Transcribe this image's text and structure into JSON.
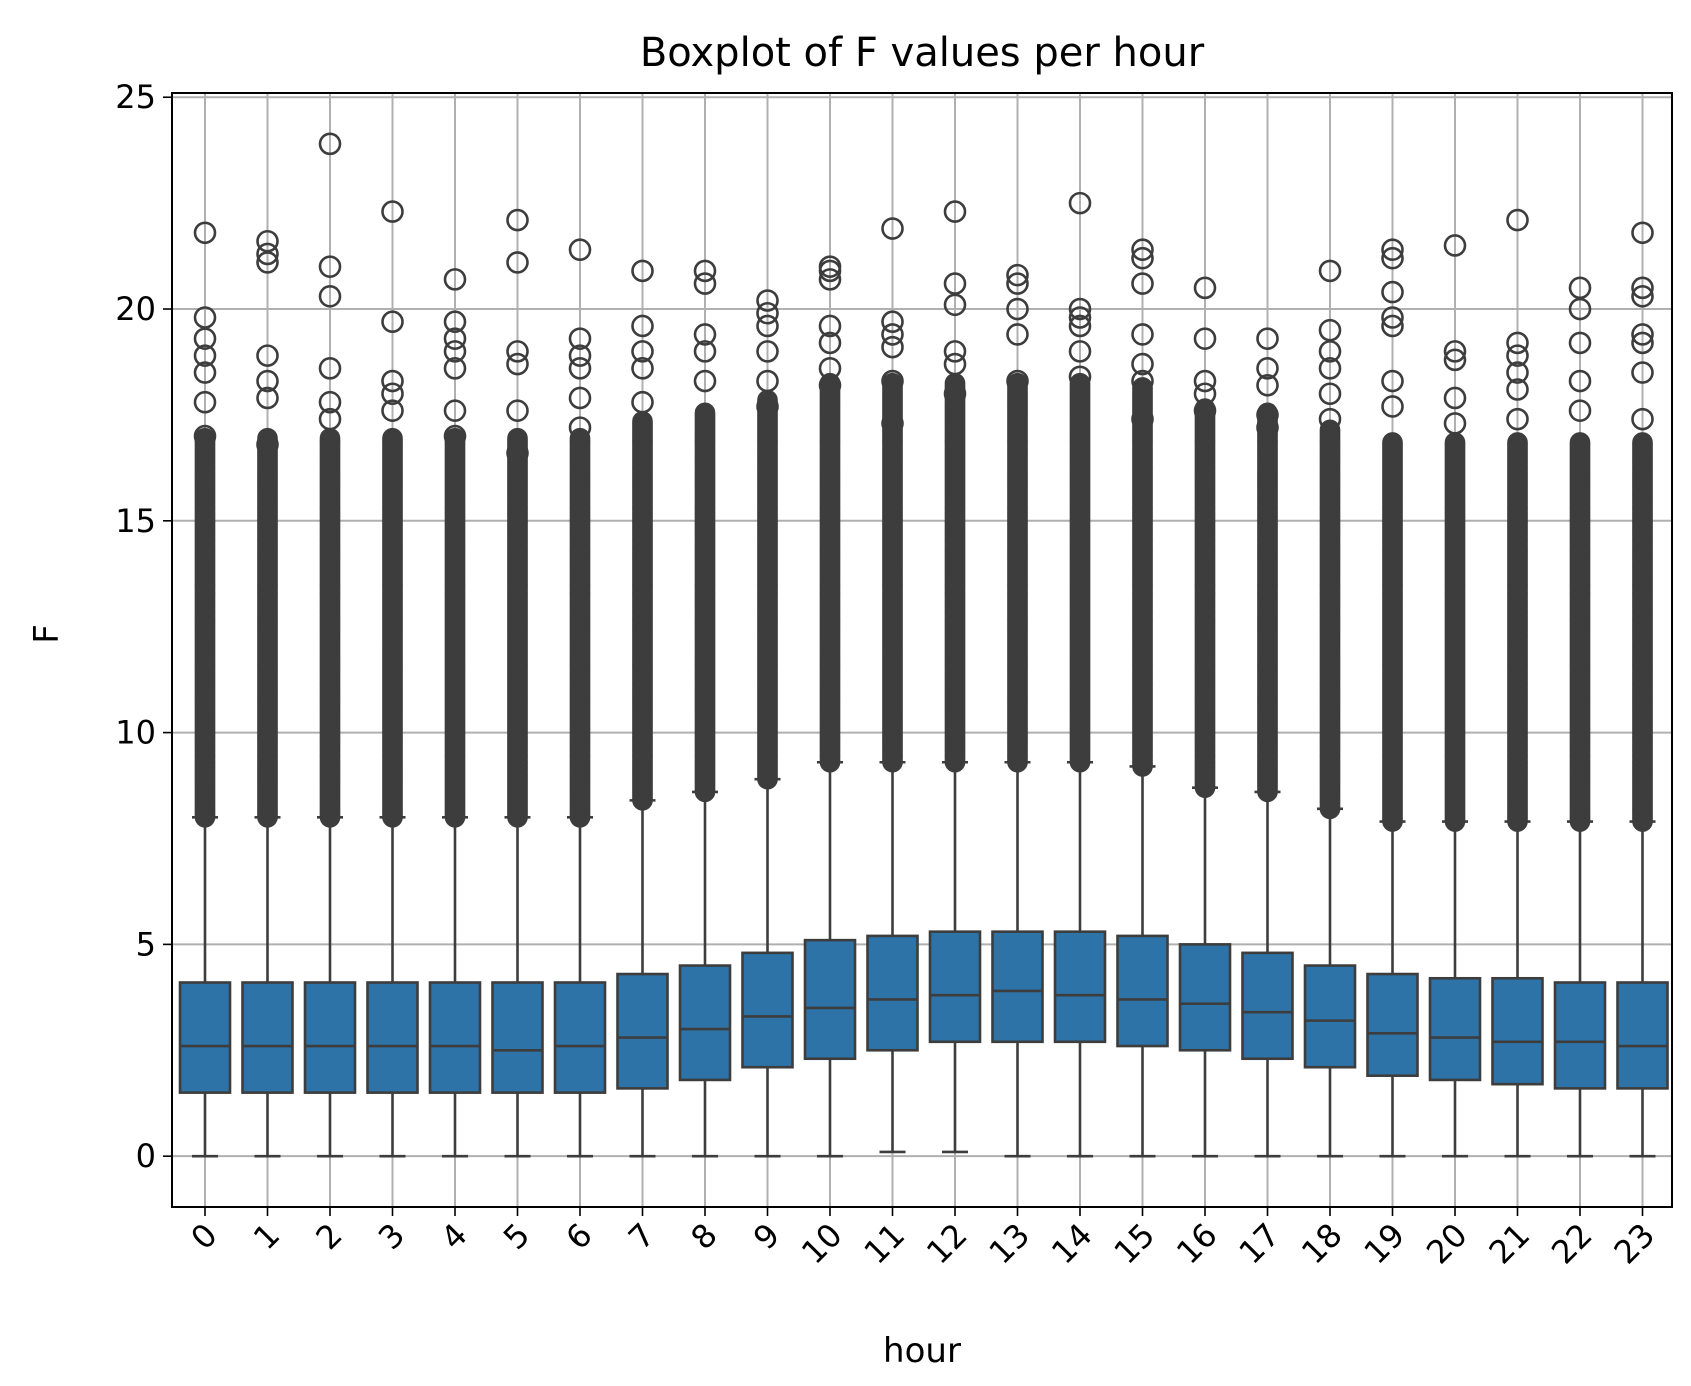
{
  "chart_data": {
    "type": "boxplot",
    "title": "Boxplot of F values per hour",
    "xlabel": "hour",
    "ylabel": "F",
    "ylim": [
      -1.2,
      25.1
    ],
    "yticks": [
      0,
      5,
      10,
      15,
      20,
      25
    ],
    "grid": true,
    "box_color": "#2e73a7",
    "line_color": "#3d3d3d",
    "categories": [
      "0",
      "1",
      "2",
      "3",
      "4",
      "5",
      "6",
      "7",
      "8",
      "9",
      "10",
      "11",
      "12",
      "13",
      "14",
      "15",
      "16",
      "17",
      "18",
      "19",
      "20",
      "21",
      "22",
      "23"
    ],
    "boxes": [
      {
        "whislo": 0.0,
        "q1": 1.5,
        "med": 2.6,
        "q3": 4.1,
        "whishi": 8.0,
        "fliers": [
          8.0,
          17.0,
          17.8,
          18.5,
          18.9,
          19.3,
          19.8,
          21.8
        ]
      },
      {
        "whislo": 0.0,
        "q1": 1.5,
        "med": 2.6,
        "q3": 4.1,
        "whishi": 8.0,
        "fliers": [
          8.0,
          16.8,
          17.9,
          18.3,
          18.9,
          21.1,
          21.3,
          21.6
        ]
      },
      {
        "whislo": 0.0,
        "q1": 1.5,
        "med": 2.6,
        "q3": 4.1,
        "whishi": 8.0,
        "fliers": [
          8.0,
          17.4,
          17.8,
          18.6,
          20.3,
          21.0,
          23.9
        ]
      },
      {
        "whislo": 0.0,
        "q1": 1.5,
        "med": 2.6,
        "q3": 4.1,
        "whishi": 8.0,
        "fliers": [
          8.0,
          17.6,
          18.0,
          18.3,
          19.7,
          22.3
        ]
      },
      {
        "whislo": 0.0,
        "q1": 1.5,
        "med": 2.6,
        "q3": 4.1,
        "whishi": 8.0,
        "fliers": [
          8.0,
          17.0,
          17.6,
          18.6,
          19.0,
          19.3,
          19.7,
          20.7
        ]
      },
      {
        "whislo": 0.0,
        "q1": 1.5,
        "med": 2.5,
        "q3": 4.1,
        "whishi": 8.0,
        "fliers": [
          8.0,
          16.6,
          17.6,
          18.7,
          19.0,
          21.1,
          22.1
        ]
      },
      {
        "whislo": 0.0,
        "q1": 1.5,
        "med": 2.6,
        "q3": 4.1,
        "whishi": 8.0,
        "fliers": [
          8.0,
          17.2,
          17.9,
          18.6,
          18.9,
          19.3,
          21.4
        ]
      },
      {
        "whislo": 0.0,
        "q1": 1.6,
        "med": 2.8,
        "q3": 4.3,
        "whishi": 8.4,
        "fliers": [
          8.4,
          17.8,
          18.6,
          19.0,
          19.6,
          20.9
        ]
      },
      {
        "whislo": 0.0,
        "q1": 1.8,
        "med": 3.0,
        "q3": 4.5,
        "whishi": 8.6,
        "fliers": [
          8.6,
          18.3,
          19.0,
          19.4,
          20.6,
          20.9
        ]
      },
      {
        "whislo": 0.0,
        "q1": 2.1,
        "med": 3.3,
        "q3": 4.8,
        "whishi": 8.9,
        "fliers": [
          8.9,
          17.7,
          18.3,
          19.0,
          19.6,
          19.9,
          20.2
        ]
      },
      {
        "whislo": 0.0,
        "q1": 2.3,
        "med": 3.5,
        "q3": 5.1,
        "whishi": 9.3,
        "fliers": [
          9.3,
          18.2,
          18.6,
          19.2,
          19.6,
          20.7,
          20.9,
          21.0
        ]
      },
      {
        "whislo": 0.1,
        "q1": 2.5,
        "med": 3.7,
        "q3": 5.2,
        "whishi": 9.3,
        "fliers": [
          9.3,
          17.3,
          18.3,
          19.1,
          19.4,
          19.7,
          21.9
        ]
      },
      {
        "whislo": 0.1,
        "q1": 2.7,
        "med": 3.8,
        "q3": 5.3,
        "whishi": 9.3,
        "fliers": [
          9.3,
          18.0,
          18.7,
          19.0,
          20.1,
          20.6,
          22.3
        ]
      },
      {
        "whislo": 0.0,
        "q1": 2.7,
        "med": 3.9,
        "q3": 5.3,
        "whishi": 9.3,
        "fliers": [
          9.3,
          18.3,
          19.4,
          20.0,
          20.6,
          20.8
        ]
      },
      {
        "whislo": 0.0,
        "q1": 2.7,
        "med": 3.8,
        "q3": 5.3,
        "whishi": 9.3,
        "fliers": [
          9.3,
          18.4,
          19.0,
          19.6,
          19.8,
          20.0,
          22.5
        ]
      },
      {
        "whislo": 0.0,
        "q1": 2.6,
        "med": 3.7,
        "q3": 5.2,
        "whishi": 9.2,
        "fliers": [
          9.2,
          17.4,
          18.3,
          18.7,
          19.4,
          20.6,
          21.2,
          21.4
        ]
      },
      {
        "whislo": 0.0,
        "q1": 2.5,
        "med": 3.6,
        "q3": 5.0,
        "whishi": 8.7,
        "fliers": [
          8.7,
          17.6,
          18.0,
          18.3,
          19.3,
          20.5
        ]
      },
      {
        "whislo": 0.0,
        "q1": 2.3,
        "med": 3.4,
        "q3": 4.8,
        "whishi": 8.6,
        "fliers": [
          8.6,
          17.2,
          17.5,
          18.2,
          18.6,
          19.3
        ]
      },
      {
        "whislo": 0.0,
        "q1": 2.1,
        "med": 3.2,
        "q3": 4.5,
        "whishi": 8.2,
        "fliers": [
          8.2,
          17.4,
          18.0,
          18.6,
          19.0,
          19.5,
          20.9
        ]
      },
      {
        "whislo": 0.0,
        "q1": 1.9,
        "med": 2.9,
        "q3": 4.3,
        "whishi": 7.9,
        "fliers": [
          7.9,
          17.7,
          18.3,
          19.6,
          19.8,
          20.4,
          21.2,
          21.4
        ]
      },
      {
        "whislo": 0.0,
        "q1": 1.8,
        "med": 2.8,
        "q3": 4.2,
        "whishi": 7.9,
        "fliers": [
          7.9,
          17.3,
          17.9,
          18.8,
          19.0,
          21.5
        ]
      },
      {
        "whislo": 0.0,
        "q1": 1.7,
        "med": 2.7,
        "q3": 4.2,
        "whishi": 7.9,
        "fliers": [
          7.9,
          17.4,
          18.1,
          18.5,
          18.9,
          19.2,
          22.1
        ]
      },
      {
        "whislo": 0.0,
        "q1": 1.6,
        "med": 2.7,
        "q3": 4.1,
        "whishi": 7.9,
        "fliers": [
          7.9,
          17.6,
          18.3,
          19.2,
          20.0,
          20.5
        ]
      },
      {
        "whislo": 0.0,
        "q1": 1.6,
        "med": 2.6,
        "q3": 4.1,
        "whishi": 7.9,
        "fliers": [
          7.9,
          17.4,
          18.5,
          19.2,
          19.4,
          20.3,
          20.5,
          21.8
        ]
      }
    ]
  }
}
